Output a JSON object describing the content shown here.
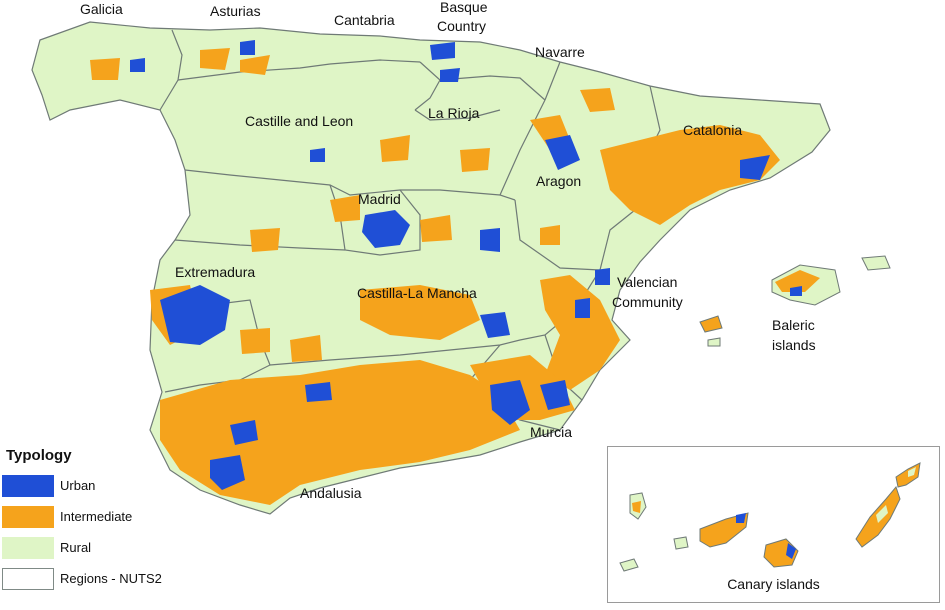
{
  "regions": [
    {
      "id": "galicia",
      "label": "Galicia"
    },
    {
      "id": "asturias",
      "label": "Asturias"
    },
    {
      "id": "cantabria",
      "label": "Cantabria"
    },
    {
      "id": "basque",
      "label": "Basque\nCountry"
    },
    {
      "id": "navarre",
      "label": "Navarre"
    },
    {
      "id": "rioja",
      "label": "La Rioja"
    },
    {
      "id": "castille-leon",
      "label": "Castille and Leon"
    },
    {
      "id": "catalonia",
      "label": "Catalonia"
    },
    {
      "id": "aragon",
      "label": "Aragon"
    },
    {
      "id": "madrid",
      "label": "Madrid"
    },
    {
      "id": "extremadura",
      "label": "Extremadura"
    },
    {
      "id": "castilla-mancha",
      "label": "Castilla-La Mancha"
    },
    {
      "id": "valencian",
      "label": "Valencian\nCommunity"
    },
    {
      "id": "baleric",
      "label": "Baleric\nislands"
    },
    {
      "id": "murcia",
      "label": "Murcia"
    },
    {
      "id": "andalusia",
      "label": "Andalusia"
    }
  ],
  "legend": {
    "title": "Typology",
    "items": [
      {
        "label": "Urban",
        "color": "#1f4fd6"
      },
      {
        "label": "Intermediate",
        "color": "#f5a31c"
      },
      {
        "label": "Rural",
        "color": "#dff5c6"
      },
      {
        "label": "Regions - NUTS2",
        "color": "#ffffff"
      }
    ]
  },
  "inset": {
    "title": "Canary islands"
  },
  "colors": {
    "urban": "#1f4fd6",
    "intermediate": "#f5a31c",
    "rural": "#dff5c6",
    "border": "#7f8a86"
  }
}
